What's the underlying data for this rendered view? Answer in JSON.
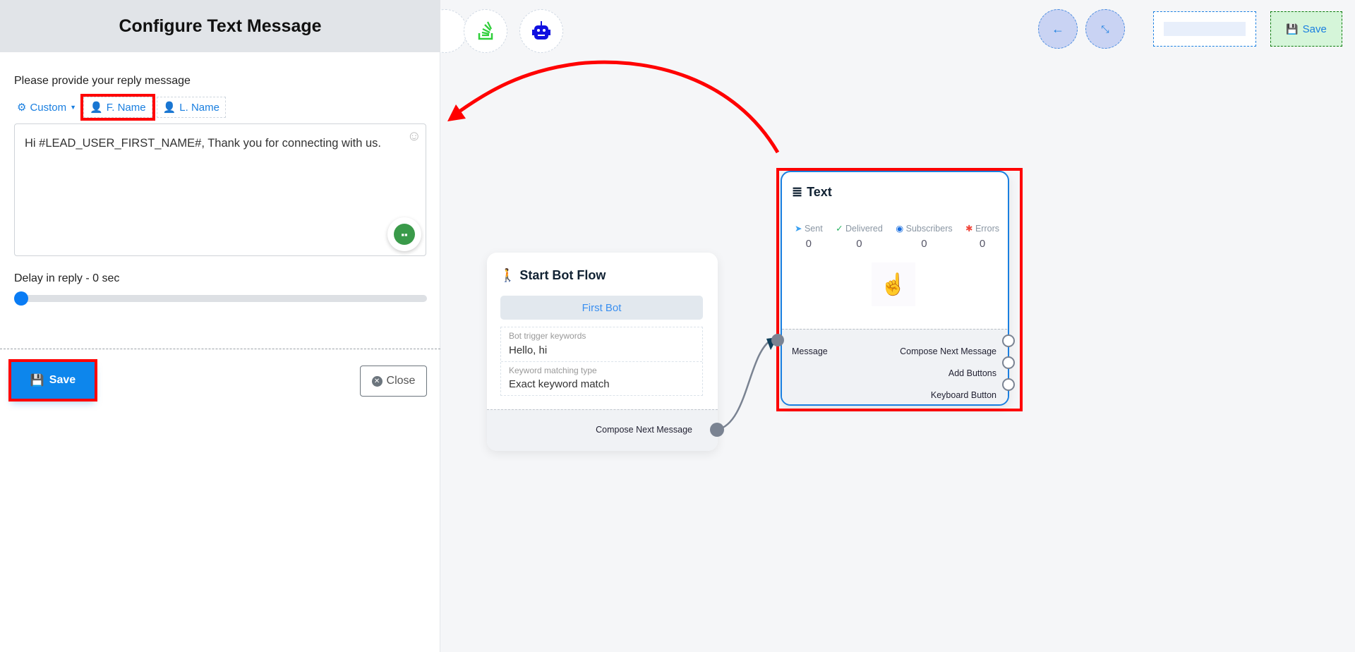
{
  "panel": {
    "title": "Configure Text Message",
    "prompt_label": "Please provide your reply message",
    "tags": {
      "custom": "Custom",
      "first_name": "F. Name",
      "last_name": "L. Name"
    },
    "message": "Hi  #LEAD_USER_FIRST_NAME#, Thank you for connecting with us.",
    "delay_label": "Delay in reply  -  0 sec",
    "delay_value": 0,
    "save_label": "Save",
    "close_label": "Close"
  },
  "toolbar": {
    "icons": [
      "stack-icon",
      "robot-icon",
      "back-arrow-icon",
      "compress-icon"
    ],
    "name_input_value": "",
    "save_label": "Save"
  },
  "start_node": {
    "title": "Start Bot Flow",
    "bot_name": "First Bot",
    "keywords_label": "Bot trigger keywords",
    "keywords_value": "Hello, hi",
    "match_label": "Keyword matching type",
    "match_value": "Exact keyword match",
    "output": "Compose Next Message"
  },
  "text_node": {
    "title": "Text",
    "stats": [
      {
        "label": "Sent",
        "value": "0",
        "color": "#3aa0f0"
      },
      {
        "label": "Delivered",
        "value": "0",
        "color": "#28b463"
      },
      {
        "label": "Subscribers",
        "value": "0",
        "color": "#1a6fe0"
      },
      {
        "label": "Errors",
        "value": "0",
        "color": "#f0453a"
      }
    ],
    "input": "Message",
    "outputs": [
      "Compose Next Message",
      "Add Buttons",
      "Keyboard Button"
    ]
  },
  "colors": {
    "accent": "#0d86ec",
    "highlight": "#ff0000"
  }
}
